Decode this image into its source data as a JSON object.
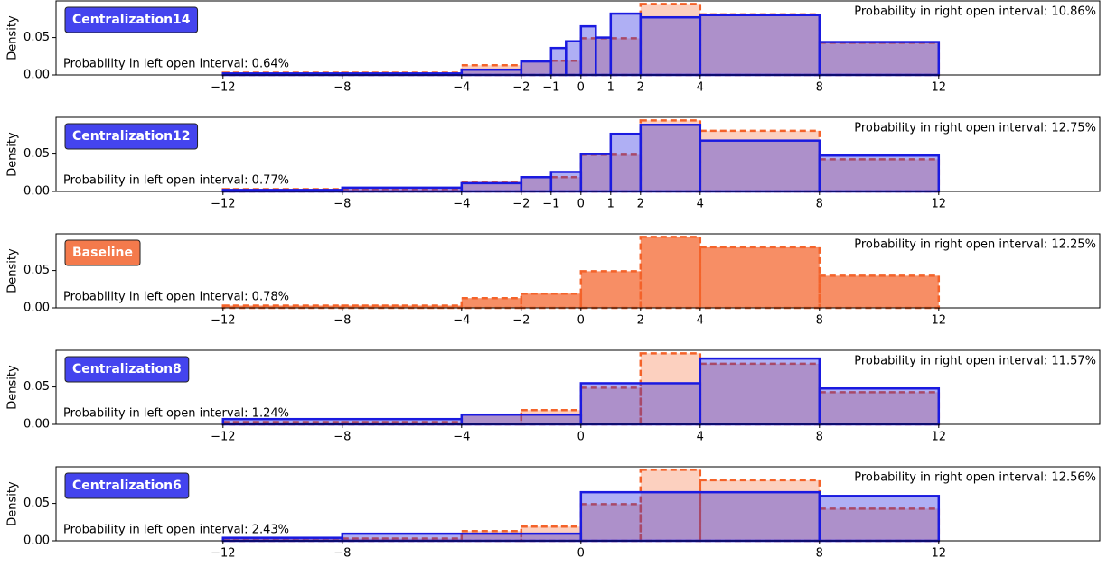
{
  "chart_data": [
    {
      "type": "histogram",
      "ylabel": "Density",
      "xlim": [
        -17.6,
        17.4
      ],
      "ylim": [
        0,
        0.099
      ],
      "yticks": [
        {
          "value": 0,
          "label": "0.00"
        },
        {
          "value": 0.05,
          "label": "0.05"
        }
      ],
      "xticks": [
        {
          "value": -12,
          "label": "−12"
        },
        {
          "value": -8,
          "label": "−8"
        },
        {
          "value": -4,
          "label": "−4"
        },
        {
          "value": -2,
          "label": "−2"
        },
        {
          "value": -1,
          "label": "−1"
        },
        0,
        1,
        2,
        4,
        8,
        12
      ],
      "badge_color": "#4444ee",
      "left_annotation": "Probability in left open interval: 0.64%",
      "right_annotation": "Probability in right open interval: 10.86%",
      "series": [
        {
          "color": "#f4632a",
          "fill_opacity": 0.3,
          "dashed": true,
          "bins": [
            -12,
            -8,
            -4,
            -2,
            0,
            2,
            4,
            8,
            12
          ],
          "values": [
            0.003,
            0.003,
            0.013,
            0.019,
            0.049,
            0.095,
            0.081,
            0.043
          ]
        },
        {
          "name": "Centralization14",
          "color": "#1a1ae0",
          "fill_opacity": 0.35,
          "dashed": false,
          "bins": [
            -12,
            -8,
            -4,
            -2,
            -1,
            -0.5,
            0,
            0.5,
            1,
            2,
            4,
            8,
            12
          ],
          "values": [
            0.002,
            0.002,
            0.007,
            0.018,
            0.036,
            0.045,
            0.065,
            0.05,
            0.082,
            0.077,
            0.08,
            0.044
          ]
        }
      ]
    },
    {
      "type": "histogram",
      "ylabel": "Density",
      "xlim": [
        -17.6,
        17.4
      ],
      "ylim": [
        0,
        0.099
      ],
      "yticks": [
        {
          "value": 0,
          "label": "0.00"
        },
        {
          "value": 0.05,
          "label": "0.05"
        }
      ],
      "xticks": [
        {
          "value": -12,
          "label": "−12"
        },
        {
          "value": -8,
          "label": "−8"
        },
        {
          "value": -4,
          "label": "−4"
        },
        {
          "value": -2,
          "label": "−2"
        },
        {
          "value": -1,
          "label": "−1"
        },
        0,
        1,
        2,
        4,
        8,
        12
      ],
      "badge_color": "#4444ee",
      "left_annotation": "Probability in left open interval: 0.77%",
      "right_annotation": "Probability in right open interval: 12.75%",
      "series": [
        {
          "color": "#f4632a",
          "fill_opacity": 0.3,
          "dashed": true,
          "bins": [
            -12,
            -8,
            -4,
            -2,
            0,
            2,
            4,
            8,
            12
          ],
          "values": [
            0.003,
            0.003,
            0.013,
            0.019,
            0.049,
            0.095,
            0.081,
            0.043
          ]
        },
        {
          "name": "Centralization12",
          "color": "#1a1ae0",
          "fill_opacity": 0.35,
          "dashed": false,
          "bins": [
            -12,
            -8,
            -4,
            -2,
            -1,
            0,
            1,
            2,
            4,
            8,
            12
          ],
          "values": [
            0.002,
            0.005,
            0.011,
            0.019,
            0.026,
            0.05,
            0.077,
            0.089,
            0.068,
            0.048
          ]
        }
      ]
    },
    {
      "type": "histogram",
      "ylabel": "Density",
      "xlim": [
        -17.6,
        17.4
      ],
      "ylim": [
        0,
        0.099
      ],
      "yticks": [
        {
          "value": 0,
          "label": "0.00"
        },
        {
          "value": 0.05,
          "label": "0.05"
        }
      ],
      "xticks": [
        {
          "value": -12,
          "label": "−12"
        },
        {
          "value": -8,
          "label": "−8"
        },
        {
          "value": -4,
          "label": "−4"
        },
        {
          "value": -2,
          "label": "−2"
        },
        0,
        2,
        4,
        8,
        12
      ],
      "badge_color": "#f47a4c",
      "left_annotation": "Probability in left open interval: 0.78%",
      "right_annotation": "Probability in right open interval: 12.25%",
      "series": [
        {
          "name": "Baseline",
          "color": "#f4632a",
          "fill_opacity": 0.72,
          "dashed": true,
          "bins": [
            -12,
            -8,
            -4,
            -2,
            0,
            2,
            4,
            8,
            12
          ],
          "values": [
            0.003,
            0.003,
            0.013,
            0.019,
            0.049,
            0.095,
            0.081,
            0.043
          ]
        }
      ]
    },
    {
      "type": "histogram",
      "ylabel": "Density",
      "xlim": [
        -17.6,
        17.4
      ],
      "ylim": [
        0,
        0.099
      ],
      "yticks": [
        {
          "value": 0,
          "label": "0.00"
        },
        {
          "value": 0.05,
          "label": "0.05"
        }
      ],
      "xticks": [
        {
          "value": -12,
          "label": "−12"
        },
        {
          "value": -8,
          "label": "−8"
        },
        {
          "value": -4,
          "label": "−4"
        },
        0,
        4,
        8,
        12
      ],
      "badge_color": "#4444ee",
      "left_annotation": "Probability in left open interval: 1.24%",
      "right_annotation": "Probability in right open interval: 11.57%",
      "series": [
        {
          "color": "#f4632a",
          "fill_opacity": 0.3,
          "dashed": true,
          "bins": [
            -12,
            -8,
            -4,
            -2,
            0,
            2,
            4,
            8,
            12
          ],
          "values": [
            0.003,
            0.003,
            0.013,
            0.019,
            0.049,
            0.095,
            0.081,
            0.043
          ]
        },
        {
          "name": "Centralization8",
          "color": "#1a1ae0",
          "fill_opacity": 0.35,
          "dashed": false,
          "bins": [
            -12,
            -4,
            0,
            4,
            8,
            12
          ],
          "values": [
            0.007,
            0.013,
            0.055,
            0.088,
            0.048
          ]
        }
      ]
    },
    {
      "type": "histogram",
      "ylabel": "Density",
      "xlim": [
        -17.6,
        17.4
      ],
      "ylim": [
        0,
        0.099
      ],
      "yticks": [
        {
          "value": 0,
          "label": "0.00"
        },
        {
          "value": 0.05,
          "label": "0.05"
        }
      ],
      "xticks": [
        {
          "value": -12,
          "label": "−12"
        },
        {
          "value": -8,
          "label": "−8"
        },
        0,
        8,
        12
      ],
      "badge_color": "#4444ee",
      "left_annotation": "Probability in left open interval: 2.43%",
      "right_annotation": "Probability in right open interval: 12.56%",
      "series": [
        {
          "color": "#f4632a",
          "fill_opacity": 0.3,
          "dashed": true,
          "bins": [
            -12,
            -8,
            -4,
            -2,
            0,
            2,
            4,
            8,
            12
          ],
          "values": [
            0.003,
            0.003,
            0.013,
            0.019,
            0.049,
            0.095,
            0.081,
            0.043
          ]
        },
        {
          "name": "Centralization6",
          "color": "#1a1ae0",
          "fill_opacity": 0.35,
          "dashed": false,
          "bins": [
            -12,
            -8,
            0,
            8,
            12
          ],
          "values": [
            0.004,
            0.0095,
            0.065,
            0.06
          ]
        }
      ]
    }
  ]
}
